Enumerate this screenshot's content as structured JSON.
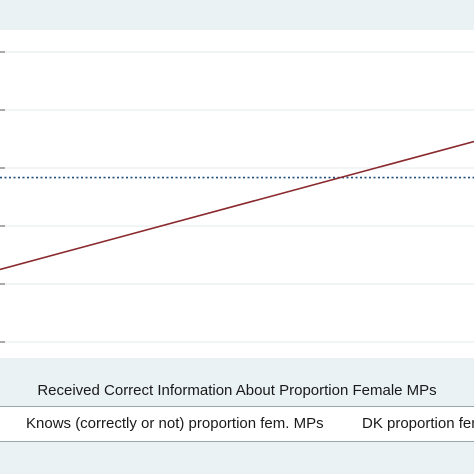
{
  "chart_data": {
    "type": "line",
    "title": "",
    "xlabel": "Received Correct Information About Proportion Female MPs",
    "ylabel": "",
    "x": [
      0,
      1
    ],
    "series": [
      {
        "name": "Knows (correctly or not) proportion fem. MPs",
        "values": [
          0.55,
          0.55
        ],
        "color": "#1f4e79",
        "style": "dotted",
        "marker": "circle"
      },
      {
        "name": "DK proportion fem",
        "values": [
          0.27,
          0.66
        ],
        "color": "#8b2a2e",
        "style": "solid",
        "marker": "circle"
      }
    ],
    "ylim": [
      0,
      1
    ],
    "grid": true,
    "legend_position": "bottom"
  }
}
